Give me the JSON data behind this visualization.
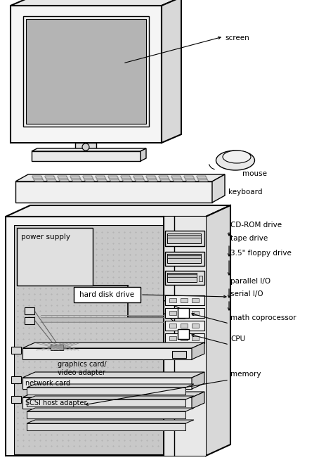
{
  "bg_color": "#ffffff",
  "lc": "#000000",
  "lgray": "#d8d8d8",
  "mgray": "#b4b4b4",
  "dgray": "#888888",
  "dotgray": "#c8c8c8",
  "white": "#ffffff",
  "labels": {
    "screen": "screen",
    "mouse": "mouse",
    "keyboard": "keyboard",
    "power_supply": "power supply",
    "hard_disk": "hard disk drive",
    "graphics_card": "graphics card/\nvideo adapter",
    "network_card": "network card",
    "scsi": "SCSI host adapter",
    "cd_rom": "CD-ROM drive",
    "tape_drive": "tape drive",
    "floppy": "3.5\" floppy drive",
    "parallel_io": "parallel I/O",
    "serial_io": "serial I/O",
    "math_co": "math coprocessor",
    "cpu": "CPU",
    "memory": "memory"
  },
  "fs": 7.5
}
